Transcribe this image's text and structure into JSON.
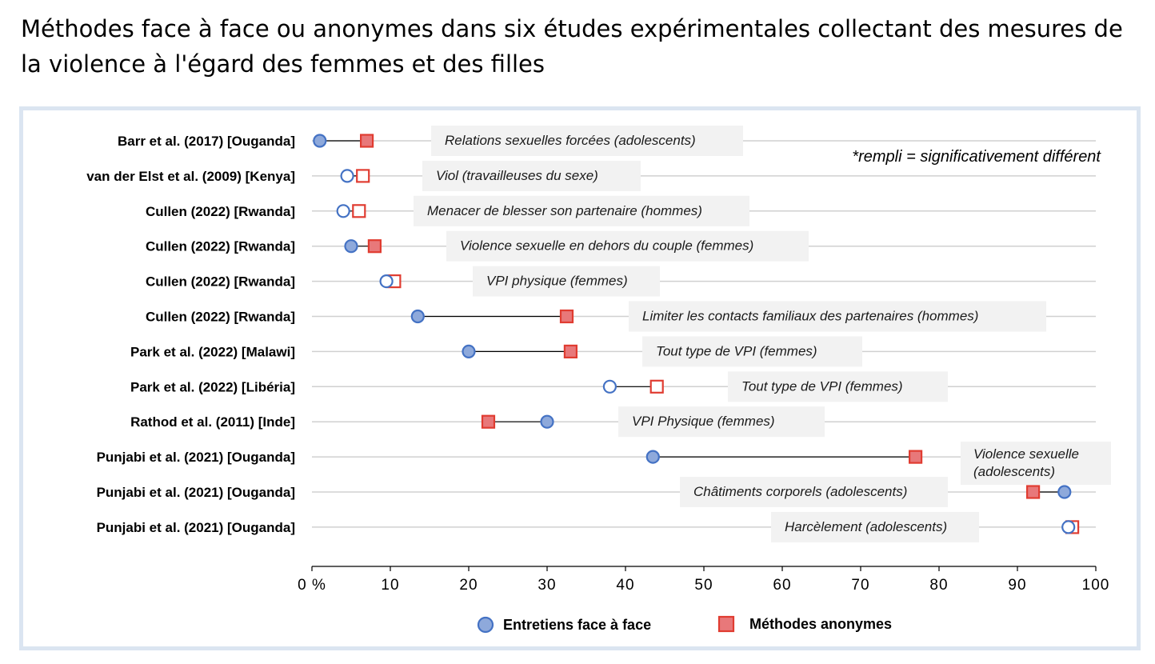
{
  "title": "Méthodes face à face ou anonymes dans six études expérimentales collectant des mesures de la violence à l'égard des femmes et des filles",
  "chart_data": {
    "type": "dumbbell",
    "xlim": [
      0,
      100
    ],
    "x_ticks": [
      "0 %",
      "10",
      "20",
      "30",
      "40",
      "50",
      "60",
      "70",
      "80",
      "90",
      "100"
    ],
    "grid": "horizontal row lines",
    "note": "*rempli = significativement différent",
    "series": [
      {
        "name": "Entretiens face à face",
        "marker": "circle",
        "color": "#4472c4",
        "fill": "#8ea9db"
      },
      {
        "name": "Méthodes anonymes",
        "marker": "square",
        "color": "#e03c31",
        "fill": "#e8787a"
      }
    ],
    "rows": [
      {
        "study": "Barr et al. (2017) [Ouganda]",
        "measure": "Relations sexuelles forcées (adolescents)",
        "face": 1,
        "anon": 7,
        "significant": true
      },
      {
        "study": "van der Elst et al. (2009) [Kenya]",
        "measure": "Viol (travailleuses du sexe)",
        "face": 4.5,
        "anon": 6.5,
        "significant": false
      },
      {
        "study": "Cullen (2022) [Rwanda]",
        "measure": "Menacer de blesser son partenaire (hommes)",
        "face": 4,
        "anon": 6,
        "significant": false
      },
      {
        "study": "Cullen (2022) [Rwanda]",
        "measure": "Violence sexuelle en dehors du couple (femmes)",
        "face": 5,
        "anon": 8,
        "significant": true
      },
      {
        "study": "Cullen (2022) [Rwanda]",
        "measure": "VPI physique (femmes)",
        "face": 9.5,
        "anon": 10.5,
        "significant": false
      },
      {
        "study": "Cullen (2022) [Rwanda]",
        "measure": "Limiter les contacts familiaux des partenaires (hommes)",
        "face": 13.5,
        "anon": 32.5,
        "significant": true
      },
      {
        "study": "Park et al. (2022) [Malawi]",
        "measure": "Tout type de VPI (femmes)",
        "face": 20,
        "anon": 33,
        "significant": true
      },
      {
        "study": "Park et al. (2022) [Libéria]",
        "measure": "Tout type de VPI (femmes)",
        "face": 38,
        "anon": 44,
        "significant": false
      },
      {
        "study": "Rathod et al. (2011) [Inde]",
        "measure": "VPI Physique (femmes)",
        "face": 30,
        "anon": 22.5,
        "significant": true
      },
      {
        "study": "Punjabi et al. (2021) [Ouganda]",
        "measure": "Violence sexuelle (adolescents)",
        "face": 43.5,
        "anon": 77,
        "significant": true
      },
      {
        "study": "Punjabi et al. (2021) [Ouganda]",
        "measure": "Châtiments corporels (adolescents)",
        "face": 96,
        "anon": 92,
        "significant": true
      },
      {
        "study": "Punjabi et al. (2021) [Ouganda]",
        "measure": "Harcèlement (adolescents)",
        "face": 96.5,
        "anon": 97,
        "significant": false
      }
    ]
  }
}
